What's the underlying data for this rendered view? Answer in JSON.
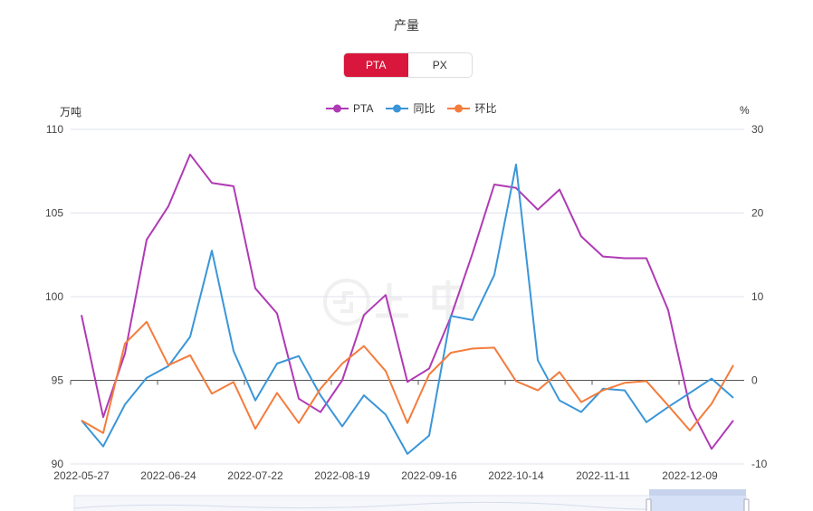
{
  "title": "产量",
  "toggle": {
    "options": [
      "PTA",
      "PX"
    ],
    "active": "PTA"
  },
  "units": {
    "left": "万吨",
    "right": "%"
  },
  "colors": {
    "PTA": "#b03ab5",
    "同比": "#3a96d8",
    "环比": "#f47c3c",
    "toggle_active": "#d9163b"
  },
  "chart_data": {
    "type": "line",
    "x": [
      "2022-05-27",
      "2022-06-03",
      "2022-06-10",
      "2022-06-17",
      "2022-06-24",
      "2022-07-01",
      "2022-07-08",
      "2022-07-15",
      "2022-07-22",
      "2022-07-29",
      "2022-08-05",
      "2022-08-12",
      "2022-08-19",
      "2022-08-26",
      "2022-09-02",
      "2022-09-09",
      "2022-09-16",
      "2022-09-23",
      "2022-09-30",
      "2022-10-07",
      "2022-10-14",
      "2022-10-21",
      "2022-10-28",
      "2022-11-04",
      "2022-11-11",
      "2022-11-18",
      "2022-11-25",
      "2022-12-02",
      "2022-12-09",
      "2022-12-16",
      "2022-12-23"
    ],
    "x_tick_labels": [
      "2022-05-27",
      "2022-06-24",
      "2022-07-22",
      "2022-08-19",
      "2022-09-16",
      "2022-10-14",
      "2022-11-11",
      "2022-12-09"
    ],
    "y_left": {
      "label": "万吨",
      "range": [
        90,
        110
      ],
      "ticks": [
        "90",
        "95",
        "100",
        "105",
        "110"
      ]
    },
    "y_right": {
      "label": "%",
      "range": [
        -10,
        30
      ],
      "ticks": [
        "-10",
        "0",
        "10",
        "20",
        "30"
      ]
    },
    "grid": true,
    "legend": "top-center",
    "series": [
      {
        "name": "PTA",
        "axis": "left",
        "values": [
          98.9,
          92.8,
          96.6,
          103.4,
          105.4,
          108.5,
          106.8,
          106.6,
          100.5,
          99.0,
          93.9,
          93.1,
          95.0,
          98.9,
          100.1,
          94.9,
          95.7,
          98.8,
          102.6,
          106.7,
          106.5,
          105.2,
          106.4,
          103.6,
          102.4,
          102.3,
          102.3,
          99.2,
          93.4,
          90.9,
          92.6
        ]
      },
      {
        "name": "同比",
        "axis": "right",
        "values": [
          -4.8,
          -7.9,
          -2.9,
          0.3,
          1.7,
          5.2,
          15.5,
          3.5,
          -2.4,
          2.0,
          2.9,
          -1.8,
          -5.5,
          -1.8,
          -4.1,
          -8.8,
          -6.6,
          7.7,
          7.2,
          12.6,
          25.8,
          2.4,
          -2.4,
          -3.8,
          -1.0,
          -1.2,
          -5.0,
          -3.2,
          -1.5,
          0.2,
          -2.1
        ]
      },
      {
        "name": "环比",
        "axis": "right",
        "values": [
          -4.8,
          -6.3,
          4.4,
          7.0,
          1.8,
          3.0,
          -1.6,
          -0.2,
          -5.8,
          -1.5,
          -5.1,
          -1.0,
          2.0,
          4.1,
          1.1,
          -5.1,
          0.7,
          3.3,
          3.8,
          3.9,
          -0.1,
          -1.2,
          1.0,
          -2.6,
          -1.2,
          -0.3,
          -0.1,
          -3.0,
          -6.0,
          -2.8,
          1.8
        ]
      }
    ]
  }
}
